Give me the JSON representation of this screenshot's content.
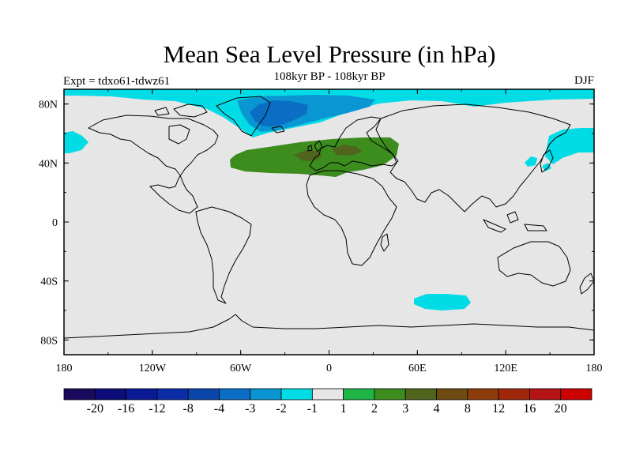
{
  "figure": {
    "title": "Mean Sea Level Pressure (in hPa)",
    "subtitle": "108kyr BP - 108kyr BP",
    "experiment_label": "Expt = tdxo61-tdwz61",
    "season": "DJF"
  },
  "axes": {
    "lat_ticks": [
      {
        "value": 80,
        "label": "80N"
      },
      {
        "value": 40,
        "label": "40N"
      },
      {
        "value": 0,
        "label": "0"
      },
      {
        "value": -40,
        "label": "40S"
      },
      {
        "value": -80,
        "label": "80S"
      }
    ],
    "lon_ticks": [
      {
        "value": -180,
        "label": "180"
      },
      {
        "value": -120,
        "label": "120W"
      },
      {
        "value": -60,
        "label": "60W"
      },
      {
        "value": 0,
        "label": "0"
      },
      {
        "value": 60,
        "label": "60E"
      },
      {
        "value": 120,
        "label": "120E"
      },
      {
        "value": 180,
        "label": "180"
      }
    ]
  },
  "colorbar": {
    "colors": [
      "#1a0a5e",
      "#0d0d7a",
      "#0a1a96",
      "#0a2ca6",
      "#0a46aa",
      "#0a6ec4",
      "#0a96d2",
      "#00dce6",
      "#e6e6e6",
      "#1eb446",
      "#3c8c1e",
      "#50641e",
      "#6e4b10",
      "#8c3c0a",
      "#a0280a",
      "#b41414",
      "#cd0000"
    ],
    "labels": [
      "-20",
      "-16",
      "-12",
      "-8",
      "-4",
      "-3",
      "-2",
      "-1",
      "1",
      "2",
      "3",
      "4",
      "8",
      "12",
      "16",
      "20"
    ]
  },
  "regions": [
    {
      "name": "arctic-negative-band",
      "level": "-1"
    },
    {
      "name": "greenland-negative-low",
      "level": "-2"
    },
    {
      "name": "greenland-negative-core",
      "level": "-3"
    },
    {
      "name": "north-atlantic-europe-positive",
      "level": "2"
    },
    {
      "name": "europe-positive-core",
      "level": "3"
    },
    {
      "name": "north-pacific-negative",
      "level": "-1"
    },
    {
      "name": "southern-indian-ocean-negative",
      "level": "-1"
    }
  ]
}
